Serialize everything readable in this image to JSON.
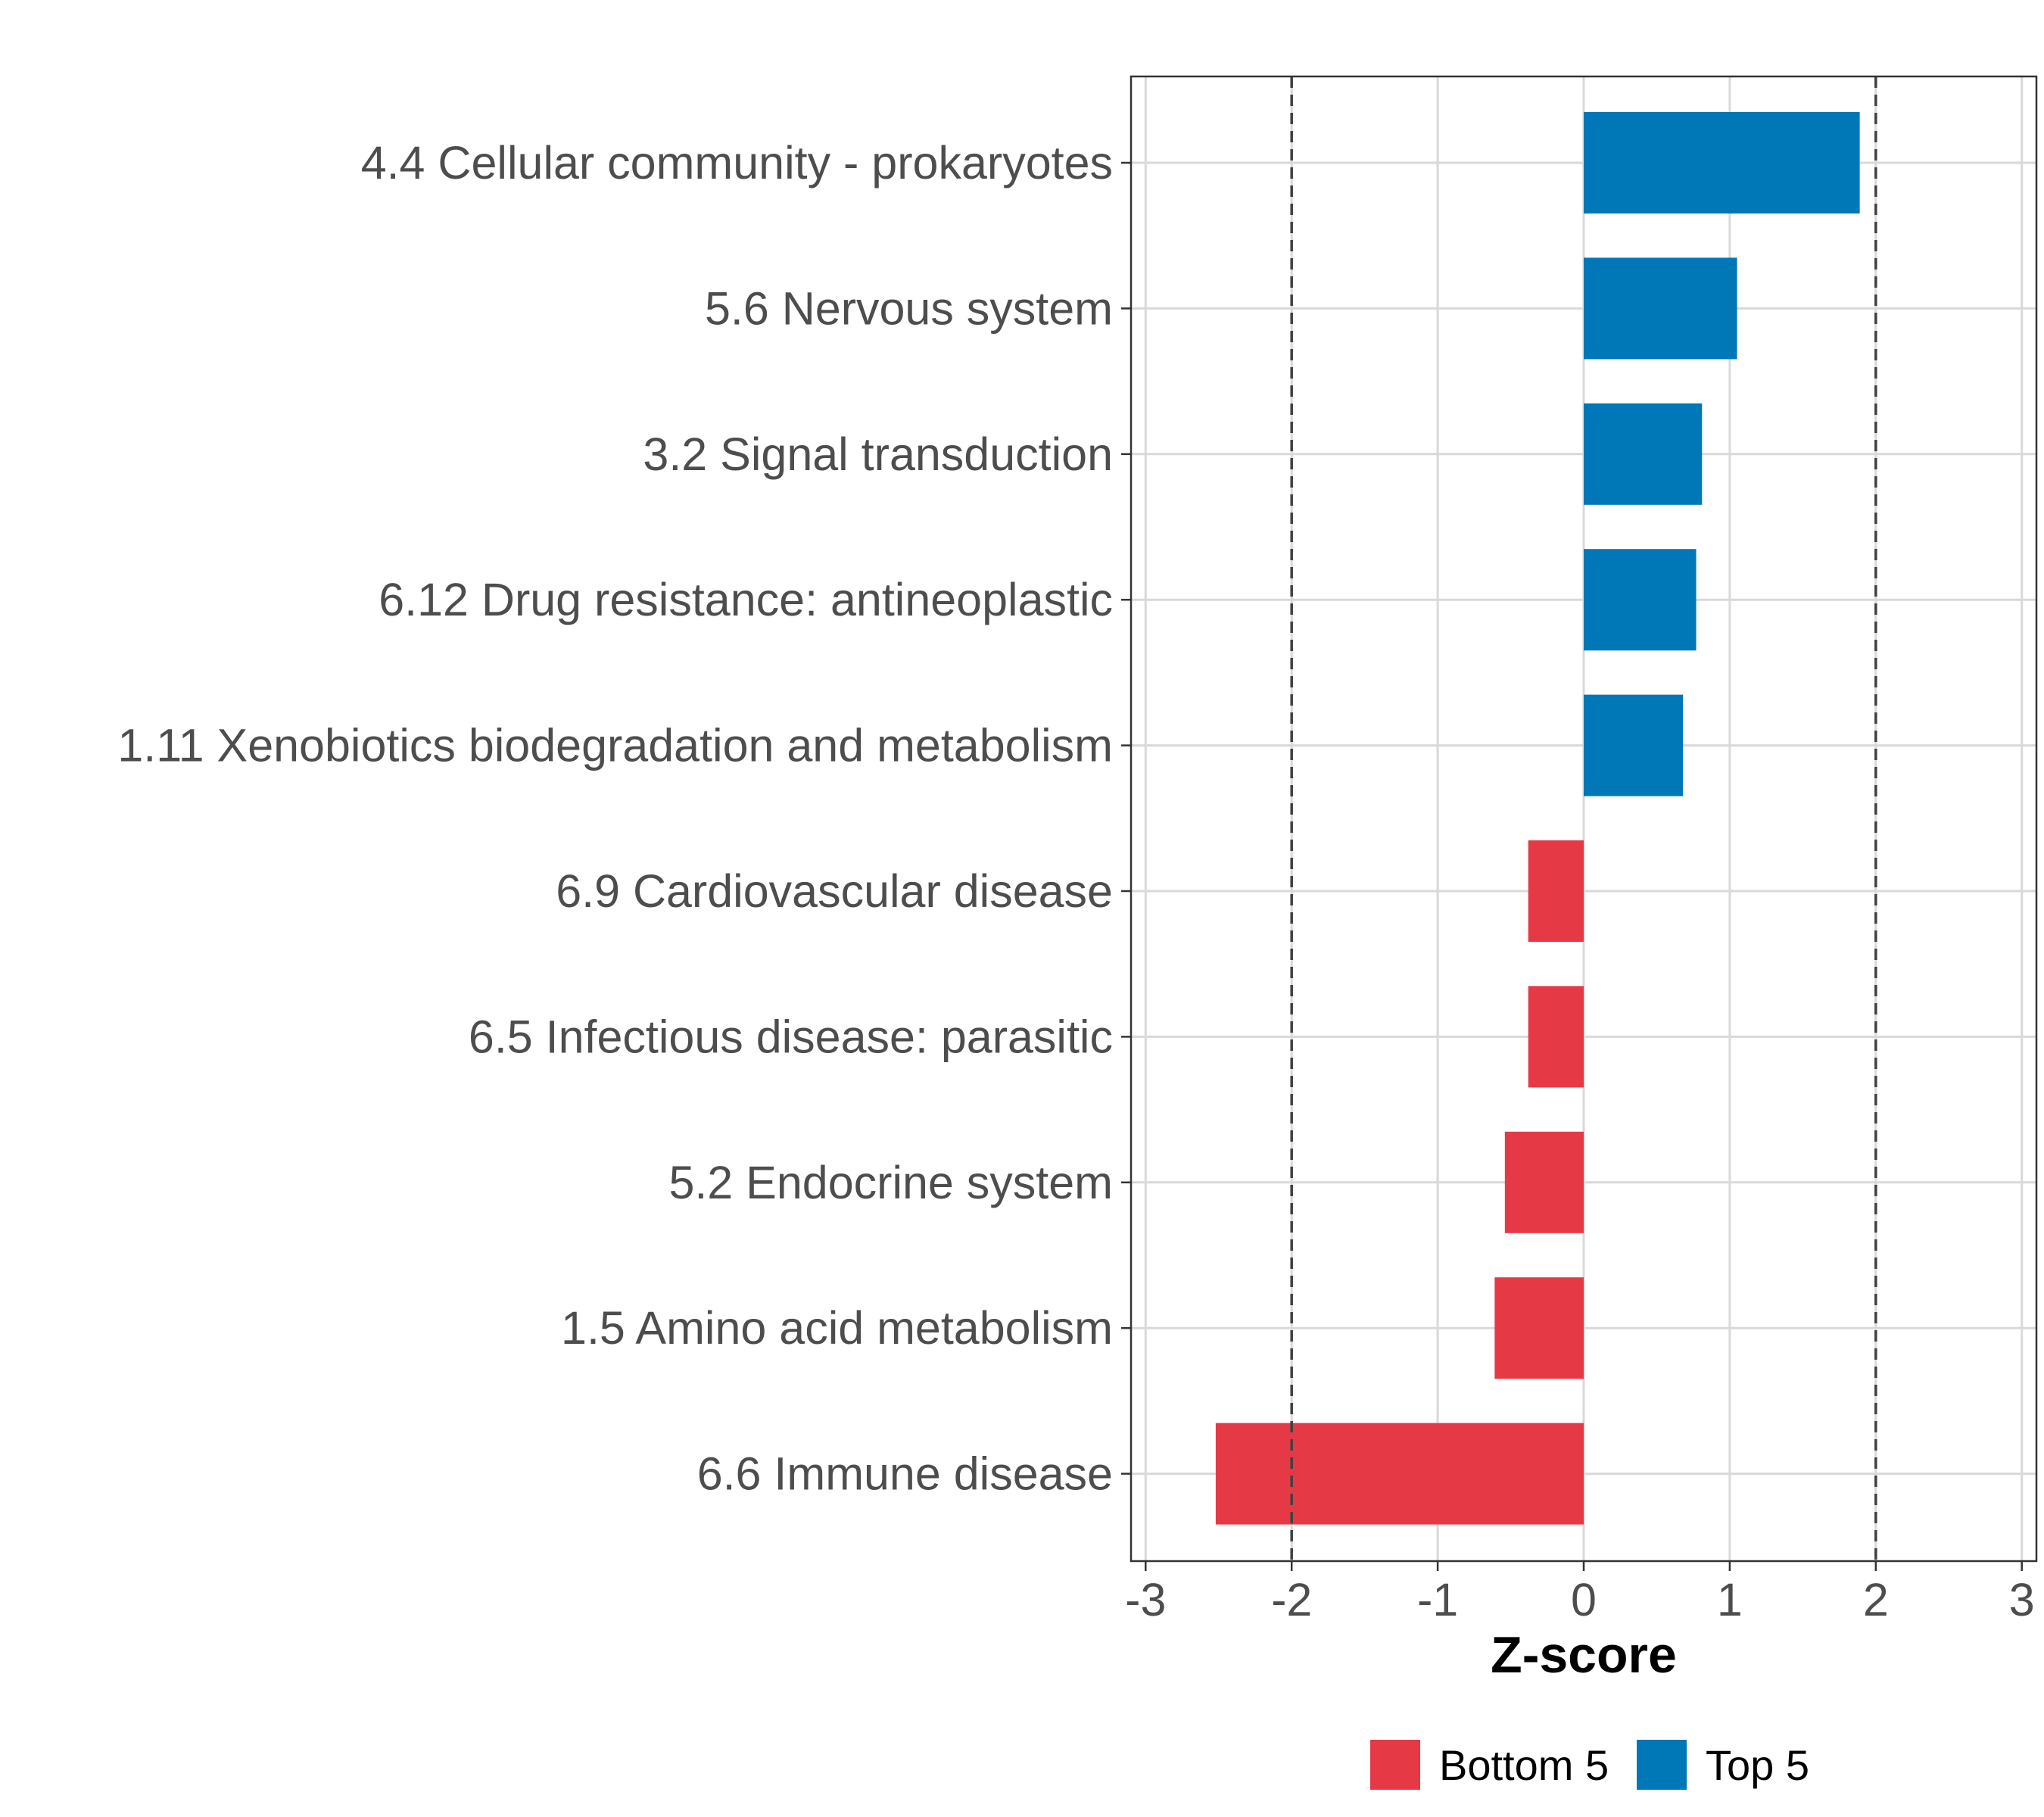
{
  "chart_data": {
    "type": "bar",
    "orientation": "horizontal",
    "categories": [
      "4.4 Cellular community - prokaryotes",
      "5.6 Nervous system",
      "3.2 Signal transduction",
      "6.12 Drug resistance: antineoplastic",
      "1.11 Xenobiotics biodegradation and metabolism",
      "6.9 Cardiovascular disease",
      "6.5 Infectious disease: parasitic",
      "5.2 Endocrine system",
      "1.5 Amino acid metabolism",
      "6.6 Immune disease"
    ],
    "values": [
      1.89,
      1.05,
      0.81,
      0.77,
      0.68,
      -0.38,
      -0.38,
      -0.54,
      -0.61,
      -2.52
    ],
    "groups": [
      "Top 5",
      "Top 5",
      "Top 5",
      "Top 5",
      "Top 5",
      "Bottom 5",
      "Bottom 5",
      "Bottom 5",
      "Bottom 5",
      "Bottom 5"
    ],
    "xlabel": "Z-score",
    "xlim": [
      -3.1,
      3.1
    ],
    "xticks": [
      -3,
      -2,
      -1,
      0,
      1,
      2,
      3
    ],
    "xtick_labels": [
      "-3",
      "-2",
      "-1",
      "0",
      "1",
      "2",
      "3"
    ],
    "reference_lines": [
      -2,
      2
    ],
    "grid": true,
    "legend": {
      "position": "bottom",
      "entries": [
        {
          "label": "Bottom 5",
          "color": "#E63946"
        },
        {
          "label": "Top 5",
          "color": "#0077B6"
        }
      ]
    },
    "colors": {
      "Bottom 5": "#E63946",
      "Top 5": "#0077B6",
      "grid": "#d9d9d9",
      "reference_line": "#404040",
      "panel_border": "#333333"
    }
  }
}
